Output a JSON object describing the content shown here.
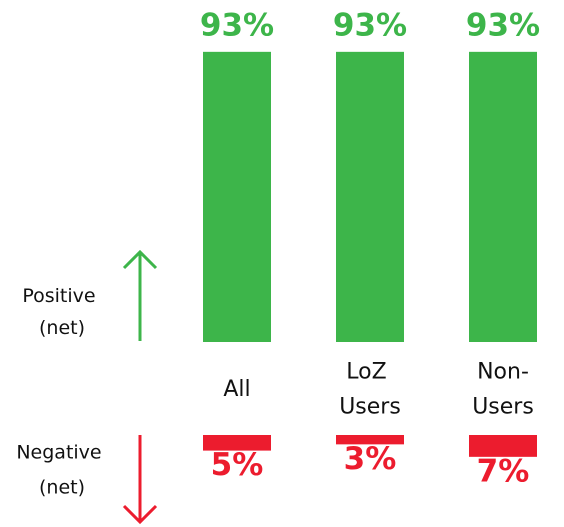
{
  "chart_data": {
    "type": "diverging-bar",
    "categories": [
      "All",
      "LoZ Users",
      "Non-Users"
    ],
    "series": [
      {
        "name": "Positive (net)",
        "color": "#3db54a",
        "values": [
          93,
          93,
          93
        ],
        "value_labels": [
          "93%",
          "93%",
          "93%"
        ]
      },
      {
        "name": "Negative (net)",
        "color": "#ec1c2e",
        "values": [
          5,
          3,
          7
        ],
        "value_labels": [
          "5%",
          "3%",
          "7%"
        ]
      }
    ]
  }
}
